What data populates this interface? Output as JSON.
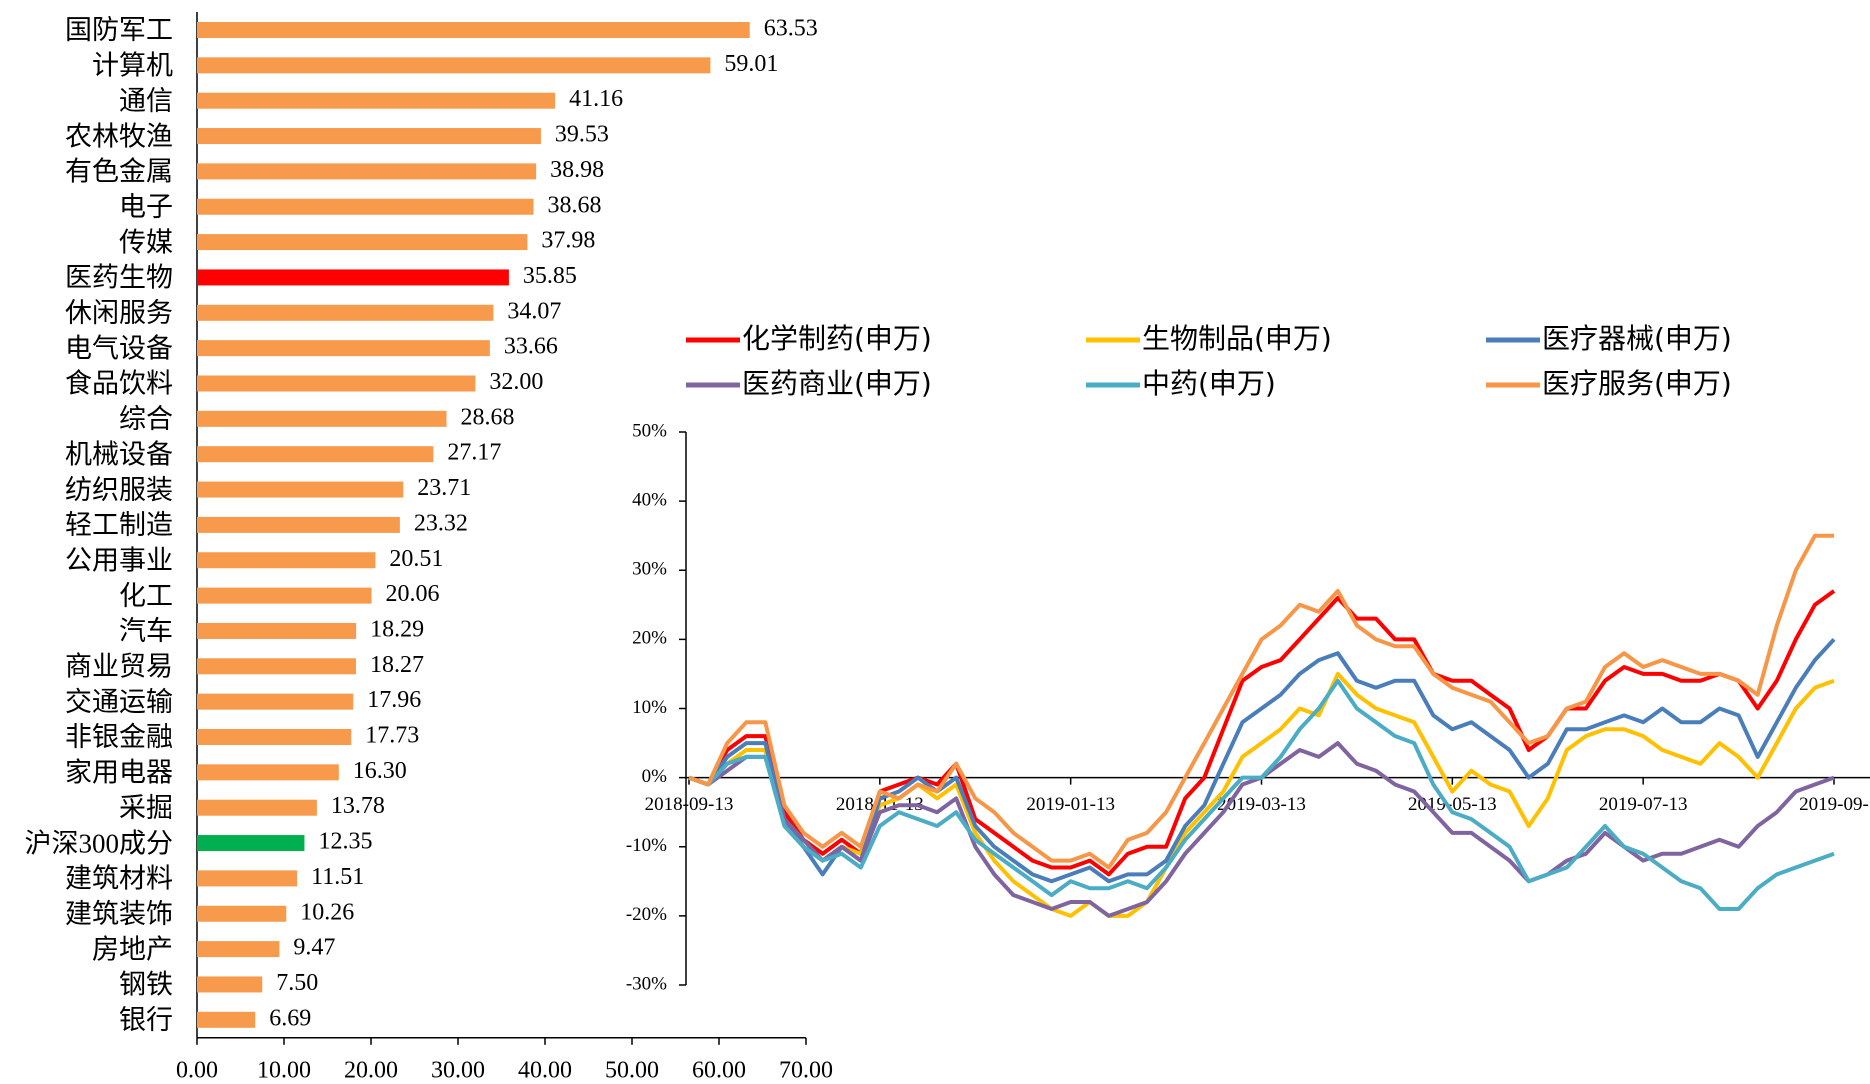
{
  "chart_data": [
    {
      "type": "hbar",
      "categories": [
        "国防军工",
        "计算机",
        "通信",
        "农林牧渔",
        "有色金属",
        "电子",
        "传媒",
        "医药生物",
        "休闲服务",
        "电气设备",
        "食品饮料",
        "综合",
        "机械设备",
        "纺织服装",
        "轻工制造",
        "公用事业",
        "化工",
        "汽车",
        "商业贸易",
        "交通运输",
        "非银金融",
        "家用电器",
        "采掘",
        "沪深300成分",
        "建筑材料",
        "建筑装饰",
        "房地产",
        "钢铁",
        "银行"
      ],
      "values": [
        63.53,
        59.01,
        41.16,
        39.53,
        38.98,
        38.68,
        37.98,
        35.85,
        34.07,
        33.66,
        32.0,
        28.68,
        27.17,
        23.71,
        23.32,
        20.51,
        20.06,
        18.29,
        18.27,
        17.96,
        17.73,
        16.3,
        13.78,
        12.35,
        11.51,
        10.26,
        9.47,
        7.5,
        6.69
      ],
      "value_labels": [
        "63.53",
        "59.01",
        "41.16",
        "39.53",
        "38.98",
        "38.68",
        "37.98",
        "35.85",
        "34.07",
        "33.66",
        "32.00",
        "28.68",
        "27.17",
        "23.71",
        "23.32",
        "20.51",
        "20.06",
        "18.29",
        "18.27",
        "17.96",
        "17.73",
        "16.30",
        "13.78",
        "12.35",
        "11.51",
        "10.26",
        "9.47",
        "7.50",
        "6.69"
      ],
      "colors": [
        "#f79a4b",
        "#f79a4b",
        "#f79a4b",
        "#f79a4b",
        "#f79a4b",
        "#f79a4b",
        "#f79a4b",
        "#ff0000",
        "#f79a4b",
        "#f79a4b",
        "#f79a4b",
        "#f79a4b",
        "#f79a4b",
        "#f79a4b",
        "#f79a4b",
        "#f79a4b",
        "#f79a4b",
        "#f79a4b",
        "#f79a4b",
        "#f79a4b",
        "#f79a4b",
        "#f79a4b",
        "#f79a4b",
        "#00b050",
        "#f79a4b",
        "#f79a4b",
        "#f79a4b",
        "#f79a4b",
        "#f79a4b"
      ],
      "xlim": [
        0,
        70
      ],
      "xticks": [
        {
          "value": 0,
          "label": "0.00"
        },
        {
          "value": 10,
          "label": "10.00"
        },
        {
          "value": 20,
          "label": "20.00"
        },
        {
          "value": 30,
          "label": "30.00"
        },
        {
          "value": 40,
          "label": "40.00"
        },
        {
          "value": 50,
          "label": "50.00"
        },
        {
          "value": 60,
          "label": "60.00"
        },
        {
          "value": 70,
          "label": "70.00"
        }
      ]
    },
    {
      "type": "line",
      "categories": [
        "2018-09-13",
        null,
        null,
        null,
        null,
        null,
        null,
        null,
        null,
        null,
        "2018-11-13",
        null,
        null,
        null,
        null,
        null,
        null,
        null,
        null,
        null,
        "2019-01-13",
        null,
        null,
        null,
        null,
        null,
        null,
        null,
        null,
        null,
        "2019-03-13",
        null,
        null,
        null,
        null,
        null,
        null,
        null,
        null,
        null,
        "2019-05-13",
        null,
        null,
        null,
        null,
        null,
        null,
        null,
        null,
        null,
        "2019-07-13",
        null,
        null,
        null,
        null,
        null,
        null,
        null,
        null,
        null,
        "2019-09-"
      ],
      "ylim": [
        -30,
        50
      ],
      "yticks": [
        {
          "value": -30,
          "label": "-30%"
        },
        {
          "value": -20,
          "label": "-20%"
        },
        {
          "value": -10,
          "label": "-10%"
        },
        {
          "value": 0,
          "label": "0%"
        },
        {
          "value": 10,
          "label": "10%"
        },
        {
          "value": 20,
          "label": "20%"
        },
        {
          "value": 30,
          "label": "30%"
        },
        {
          "value": 40,
          "label": "40%"
        },
        {
          "value": 50,
          "label": "50%"
        }
      ],
      "series": [
        {
          "name": "化学制药(申万)",
          "color": "#ff0000",
          "values": [
            0,
            -1,
            4,
            6,
            6,
            -5,
            -9,
            -11,
            -9,
            -11,
            -2,
            -1,
            0,
            -1,
            2,
            -6,
            -8,
            -10,
            -12,
            -13,
            -13,
            -12,
            -14,
            -11,
            -10,
            -10,
            -3,
            0,
            7,
            14,
            16,
            17,
            20,
            23,
            26,
            23,
            23,
            20,
            20,
            15,
            14,
            14,
            12,
            10,
            4,
            6,
            10,
            10,
            14,
            16,
            15,
            15,
            14,
            14,
            15,
            14,
            10,
            14,
            20,
            25,
            27
          ]
        },
        {
          "name": "生物制品(申万)",
          "color": "#ffc000",
          "values": [
            0,
            -1,
            2,
            4,
            4,
            -7,
            -10,
            -12,
            -10,
            -11,
            -4,
            -3,
            -1,
            -3,
            -1,
            -8,
            -12,
            -15,
            -17,
            -19,
            -20,
            -18,
            -20,
            -20,
            -18,
            -13,
            -8,
            -5,
            -2,
            3,
            5,
            7,
            10,
            9,
            15,
            12,
            10,
            9,
            8,
            3,
            -2,
            1,
            -1,
            -2,
            -7,
            -3,
            4,
            6,
            7,
            7,
            6,
            4,
            3,
            2,
            5,
            3,
            0,
            5,
            10,
            13,
            14
          ]
        },
        {
          "name": "医疗器械(申万)",
          "color": "#4a7ebb",
          "values": [
            0,
            -1,
            3,
            5,
            5,
            -6,
            -10,
            -14,
            -10,
            -12,
            -3,
            -2,
            0,
            -2,
            0,
            -7,
            -10,
            -12,
            -14,
            -15,
            -14,
            -13,
            -15,
            -14,
            -14,
            -12,
            -7,
            -4,
            2,
            8,
            10,
            12,
            15,
            17,
            18,
            14,
            13,
            14,
            14,
            9,
            7,
            8,
            6,
            4,
            0,
            2,
            7,
            7,
            8,
            9,
            8,
            10,
            8,
            8,
            10,
            9,
            3,
            8,
            13,
            17,
            20
          ]
        },
        {
          "name": "医药商业(申万)",
          "color": "#7f64a0",
          "values": [
            0,
            -1,
            1,
            3,
            3,
            -6,
            -9,
            -12,
            -10,
            -12,
            -5,
            -4,
            -4,
            -5,
            -3,
            -10,
            -14,
            -17,
            -18,
            -19,
            -18,
            -18,
            -20,
            -19,
            -18,
            -15,
            -11,
            -8,
            -5,
            -1,
            0,
            2,
            4,
            3,
            5,
            2,
            1,
            -1,
            -2,
            -5,
            -8,
            -8,
            -10,
            -12,
            -15,
            -14,
            -12,
            -11,
            -8,
            -10,
            -12,
            -11,
            -11,
            -10,
            -9,
            -10,
            -7,
            -5,
            -2,
            -1,
            0
          ]
        },
        {
          "name": "中药(申万)",
          "color": "#4bacc6",
          "values": [
            0,
            -1,
            2,
            3,
            3,
            -7,
            -10,
            -12,
            -11,
            -13,
            -7,
            -5,
            -6,
            -7,
            -5,
            -9,
            -11,
            -13,
            -15,
            -17,
            -15,
            -16,
            -16,
            -15,
            -16,
            -13,
            -9,
            -6,
            -3,
            0,
            0,
            3,
            7,
            10,
            14,
            10,
            8,
            6,
            5,
            -1,
            -5,
            -6,
            -8,
            -10,
            -15,
            -14,
            -13,
            -10,
            -7,
            -10,
            -11,
            -13,
            -15,
            -16,
            -19,
            -19,
            -16,
            -14,
            -13,
            -12,
            -11
          ]
        },
        {
          "name": "医疗服务(申万)",
          "color": "#f79646",
          "values": [
            0,
            -1,
            5,
            8,
            8,
            -4,
            -8,
            -10,
            -8,
            -10,
            -2,
            -3,
            -1,
            -2,
            2,
            -3,
            -5,
            -8,
            -10,
            -12,
            -12,
            -11,
            -13,
            -9,
            -8,
            -5,
            0,
            5,
            10,
            15,
            20,
            22,
            25,
            24,
            27,
            22,
            20,
            19,
            19,
            15,
            13,
            12,
            11,
            8,
            5,
            6,
            10,
            11,
            16,
            18,
            16,
            17,
            16,
            15,
            15,
            14,
            12,
            22,
            30,
            35,
            35
          ]
        }
      ]
    }
  ]
}
